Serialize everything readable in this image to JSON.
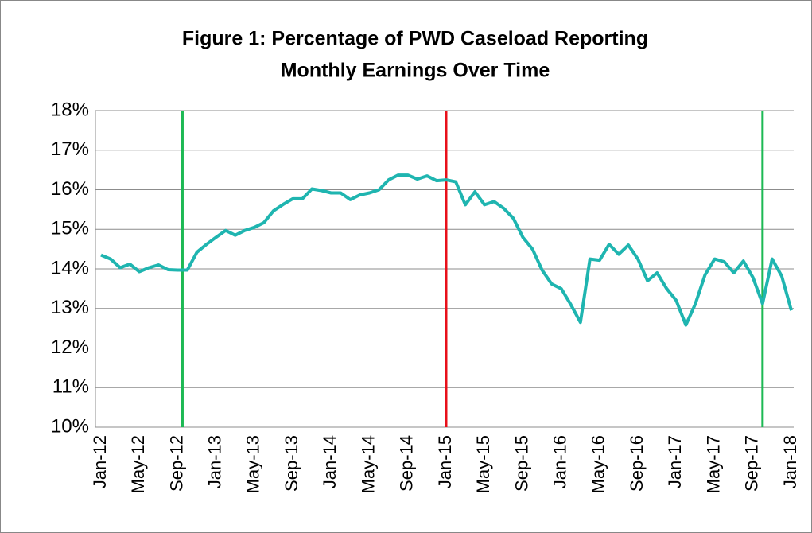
{
  "chart_data": {
    "type": "line",
    "title": [
      "Figure 1: Percentage of PWD Caseload Reporting",
      "Monthly Earnings Over Time"
    ],
    "categories": [
      "Jan-12",
      null,
      null,
      null,
      "May-12",
      null,
      null,
      null,
      "Sep-12",
      null,
      null,
      null,
      "Jan-13",
      null,
      null,
      null,
      "May-13",
      null,
      null,
      null,
      "Sep-13",
      null,
      null,
      null,
      "Jan-14",
      null,
      null,
      null,
      "May-14",
      null,
      null,
      null,
      "Sep-14",
      null,
      null,
      null,
      "Jan-15",
      null,
      null,
      null,
      "May-15",
      null,
      null,
      null,
      "Sep-15",
      null,
      null,
      null,
      "Jan-16",
      null,
      null,
      null,
      "May-16",
      null,
      null,
      null,
      "Sep-16",
      null,
      null,
      null,
      "Jan-17",
      null,
      null,
      null,
      "May-17",
      null,
      null,
      null,
      "Sep-17",
      null,
      null,
      null,
      "Jan-18"
    ],
    "series": [
      {
        "color": "#1fb5b0",
        "values": [
          14.35,
          14.25,
          14.03,
          14.12,
          13.93,
          14.03,
          14.1,
          13.98,
          13.97,
          13.97,
          14.42,
          14.62,
          14.8,
          14.97,
          14.85,
          14.97,
          15.05,
          15.17,
          15.47,
          15.63,
          15.77,
          15.77,
          16.02,
          15.98,
          15.92,
          15.92,
          15.75,
          15.87,
          15.92,
          16.0,
          16.25,
          16.37,
          16.37,
          16.27,
          16.35,
          16.23,
          16.25,
          16.2,
          15.62,
          15.95,
          15.62,
          15.7,
          15.53,
          15.28,
          14.8,
          14.5,
          13.97,
          13.62,
          13.5,
          13.1,
          12.65,
          14.25,
          14.22,
          14.62,
          14.37,
          14.6,
          14.25,
          13.7,
          13.9,
          13.5,
          13.2,
          12.58,
          13.12,
          13.85,
          14.25,
          14.18,
          13.9,
          14.2,
          13.78,
          13.12,
          14.25,
          13.82,
          12.95
        ]
      }
    ],
    "vlines": [
      {
        "at": 8.5,
        "color": "#1db954"
      },
      {
        "at": 36,
        "color": "#e8101a"
      },
      {
        "at": 69,
        "color": "#1db954"
      }
    ],
    "ylim": [
      10,
      18
    ],
    "yticks": [
      {
        "value": 10,
        "label": "10%"
      },
      {
        "value": 11,
        "label": "11%"
      },
      {
        "value": 12,
        "label": "12%"
      },
      {
        "value": 13,
        "label": "13%"
      },
      {
        "value": 14,
        "label": "14%"
      },
      {
        "value": 15,
        "label": "15%"
      },
      {
        "value": 16,
        "label": "16%"
      },
      {
        "value": 17,
        "label": "17%"
      },
      {
        "value": 18,
        "label": "18%"
      }
    ],
    "grid": true
  }
}
